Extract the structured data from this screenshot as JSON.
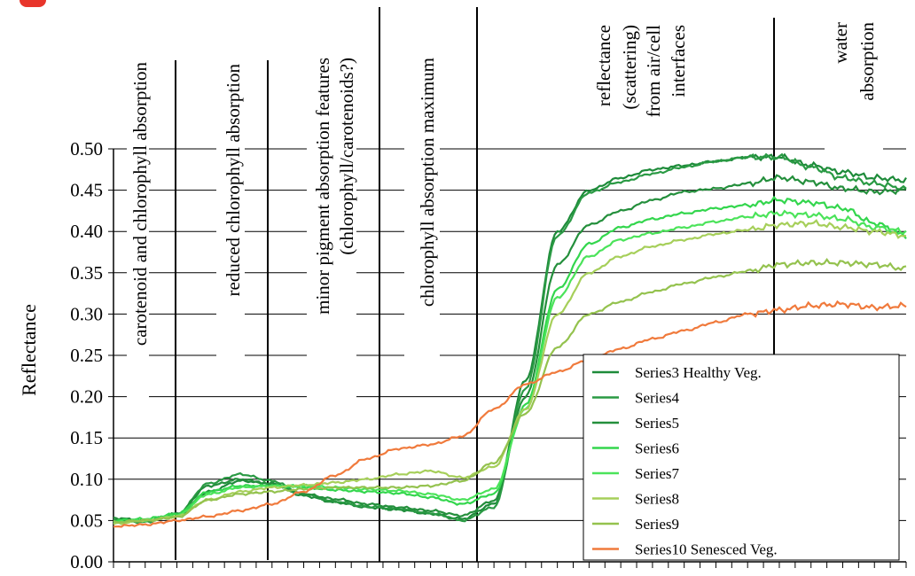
{
  "chart_data": {
    "type": "line",
    "title": "",
    "ylabel": "Reflectance",
    "xlabel": "",
    "ylim": [
      0,
      0.5
    ],
    "yticks": [
      "0.00",
      "0.05",
      "0.10",
      "0.15",
      "0.20",
      "0.25",
      "0.30",
      "0.35",
      "0.40",
      "0.45",
      "0.50"
    ],
    "x_tick_count": 51,
    "grid": true,
    "legend_position": "bottom-right",
    "annotations": [
      {
        "text": "carotenoid and chlorophyll absorption",
        "region": 1
      },
      {
        "text": "reduced chlorophyll absorption",
        "region": 2
      },
      {
        "text": "minor pigment absorption features",
        "text2": "(chlorophyll/carotenoids?)",
        "region": 3
      },
      {
        "text": "chlorophyll absorption maximum",
        "region": 4
      },
      {
        "text": "reflectance",
        "text2": "(scattering)",
        "text3": "from air/cell",
        "text4": "interfaces",
        "region": 5
      },
      {
        "text": "water",
        "text2": "absorption",
        "region": 6
      }
    ],
    "x": [
      0,
      2,
      4,
      6,
      8,
      10,
      12,
      14,
      16,
      18,
      20,
      22,
      24,
      26,
      28,
      30,
      32,
      34,
      36,
      38,
      40,
      42,
      44,
      46,
      48,
      50
    ],
    "series": [
      {
        "name": "Series3 Healthy Veg.",
        "color": "#1e8b3a",
        "values": [
          0.05,
          0.05,
          0.055,
          0.085,
          0.098,
          0.095,
          0.08,
          0.072,
          0.066,
          0.063,
          0.058,
          0.052,
          0.07,
          0.22,
          0.4,
          0.45,
          0.465,
          0.475,
          0.48,
          0.485,
          0.49,
          0.49,
          0.48,
          0.472,
          0.465,
          0.462
        ]
      },
      {
        "name": "Series4",
        "color": "#2a9a44",
        "values": [
          0.05,
          0.048,
          0.058,
          0.095,
          0.106,
          0.098,
          0.082,
          0.073,
          0.067,
          0.064,
          0.059,
          0.05,
          0.066,
          0.21,
          0.395,
          0.447,
          0.46,
          0.47,
          0.478,
          0.485,
          0.49,
          0.49,
          0.478,
          0.465,
          0.458,
          0.452
        ]
      },
      {
        "name": "Series5",
        "color": "#248f3c",
        "values": [
          0.053,
          0.05,
          0.058,
          0.092,
          0.1,
          0.094,
          0.082,
          0.076,
          0.07,
          0.066,
          0.062,
          0.056,
          0.074,
          0.2,
          0.36,
          0.408,
          0.425,
          0.438,
          0.448,
          0.452,
          0.458,
          0.465,
          0.46,
          0.452,
          0.448,
          0.45
        ]
      },
      {
        "name": "Series6",
        "color": "#33d64d",
        "values": [
          0.05,
          0.052,
          0.058,
          0.085,
          0.092,
          0.092,
          0.09,
          0.087,
          0.085,
          0.083,
          0.078,
          0.07,
          0.082,
          0.19,
          0.33,
          0.385,
          0.405,
          0.415,
          0.422,
          0.428,
          0.432,
          0.438,
          0.435,
          0.428,
          0.41,
          0.395
        ]
      },
      {
        "name": "Series7",
        "color": "#4be35a",
        "values": [
          0.048,
          0.05,
          0.056,
          0.082,
          0.09,
          0.092,
          0.092,
          0.09,
          0.088,
          0.086,
          0.082,
          0.075,
          0.088,
          0.185,
          0.32,
          0.37,
          0.39,
          0.398,
          0.405,
          0.412,
          0.418,
          0.422,
          0.42,
          0.415,
          0.405,
          0.4
        ]
      },
      {
        "name": "Series8",
        "color": "#a6cf5a",
        "values": [
          0.046,
          0.05,
          0.055,
          0.075,
          0.085,
          0.09,
          0.093,
          0.096,
          0.1,
          0.106,
          0.11,
          0.102,
          0.115,
          0.185,
          0.3,
          0.35,
          0.37,
          0.382,
          0.39,
          0.397,
          0.402,
          0.408,
          0.41,
          0.405,
          0.4,
          0.395
        ]
      },
      {
        "name": "Series9",
        "color": "#94c24e",
        "values": [
          0.048,
          0.05,
          0.054,
          0.075,
          0.082,
          0.085,
          0.088,
          0.09,
          0.09,
          0.09,
          0.092,
          0.098,
          0.12,
          0.18,
          0.26,
          0.3,
          0.315,
          0.327,
          0.337,
          0.345,
          0.352,
          0.36,
          0.362,
          0.362,
          0.36,
          0.355
        ]
      },
      {
        "name": "Series10 Senesced Veg.",
        "color": "#f07a3c",
        "values": [
          0.043,
          0.045,
          0.05,
          0.055,
          0.062,
          0.07,
          0.085,
          0.105,
          0.125,
          0.137,
          0.142,
          0.152,
          0.185,
          0.215,
          0.23,
          0.245,
          0.258,
          0.27,
          0.28,
          0.29,
          0.3,
          0.305,
          0.31,
          0.312,
          0.308,
          0.31
        ]
      }
    ]
  }
}
